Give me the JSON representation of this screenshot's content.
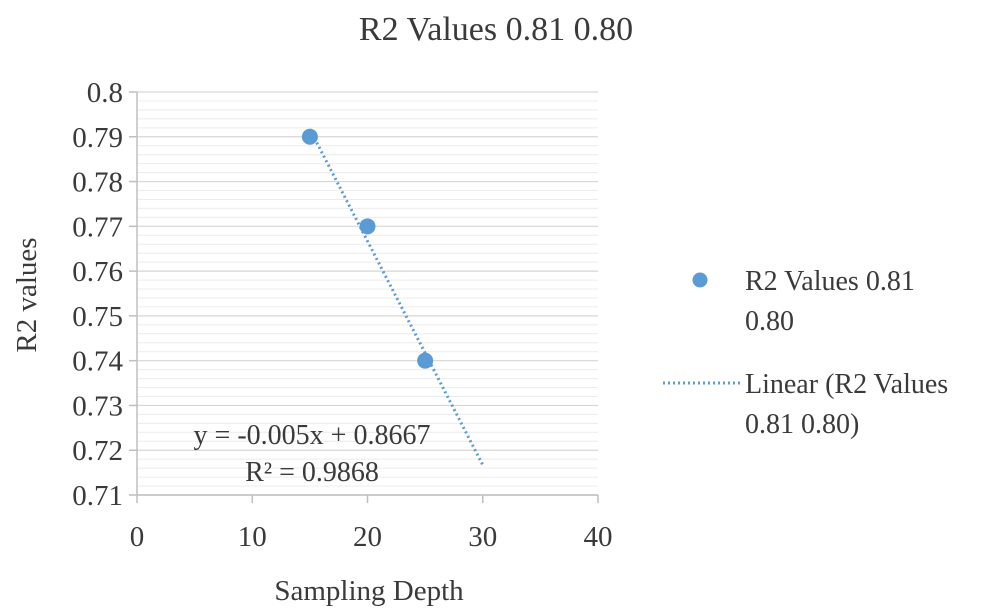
{
  "chart_data": {
    "type": "scatter",
    "title": "R2 Values 0.81 0.80",
    "xlabel": "Sampling Depth",
    "ylabel": "R2 values",
    "xlim": [
      0,
      40
    ],
    "ylim": [
      0.71,
      0.8
    ],
    "x_ticks": [
      0,
      10,
      20,
      30,
      40
    ],
    "x_tick_labels": [
      "0",
      "10",
      "20",
      "30",
      "40"
    ],
    "y_ticks": [
      0.71,
      0.72,
      0.73,
      0.74,
      0.75,
      0.76,
      0.77,
      0.78,
      0.79,
      0.8
    ],
    "y_tick_labels": [
      "0.71",
      "0.72",
      "0.73",
      "0.74",
      "0.75",
      "0.76",
      "0.77",
      "0.78",
      "0.79",
      "0.8"
    ],
    "grid": true,
    "legend_position": "right",
    "series": [
      {
        "name": "R2 Values 0.81 0.80",
        "name_lines": [
          "R2 Values 0.81",
          "0.80"
        ],
        "color": "#5b9bd5",
        "points": [
          {
            "x": 15,
            "y": 0.79
          },
          {
            "x": 20,
            "y": 0.77
          },
          {
            "x": 25,
            "y": 0.74
          }
        ]
      }
    ],
    "trendline": {
      "name": "Linear (R2 Values 0.81 0.80)",
      "name_lines": [
        "Linear (R2 Values",
        "0.81 0.80)"
      ],
      "style": "dotted",
      "color": "#5b9bd5",
      "x_range": [
        15,
        30
      ],
      "slope": -0.005,
      "intercept": 0.8667,
      "equation_label": "y = -0.005x + 0.8667",
      "r2_label": "R² = 0.9868"
    }
  }
}
